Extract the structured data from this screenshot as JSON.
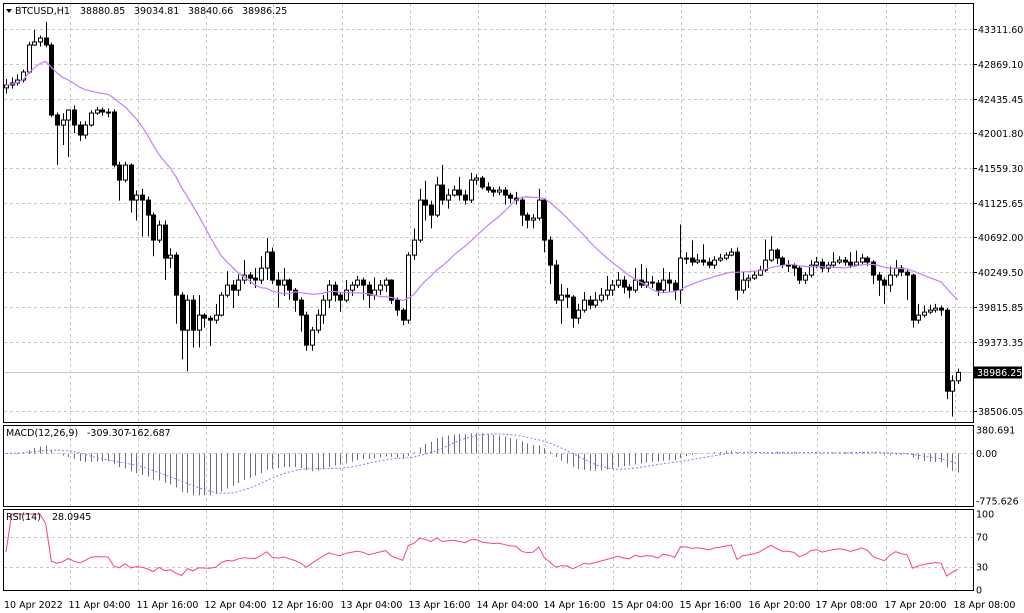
{
  "header": {
    "symbol": "BTCUSD,H1",
    "open": "38880.85",
    "high": "39034.81",
    "low": "38840.66",
    "close": "38986.25"
  },
  "colors": {
    "background": "#ffffff",
    "grid": "#c8c8c8",
    "candle": "#000000",
    "ma": "#c77dff",
    "macd_hist": "#6e6e82",
    "macd_signal": "#9a6cff",
    "rsi": "#ff3c96"
  },
  "icons": {
    "symbol_menu": "triangle-down-icon"
  },
  "chart_data": [
    {
      "type": "candlestick",
      "title": "BTCUSD,H1",
      "price_ticks": [
        "43311.60",
        "42869.10",
        "42435.45",
        "42001.80",
        "41559.30",
        "41125.65",
        "40692.00",
        "40249.50",
        "39815.85",
        "39373.35",
        "38506.05"
      ],
      "current_price_label": "38986.25",
      "ylim": [
        38380,
        43640
      ],
      "time_labels": [
        "10 Apr 2022",
        "11 Apr 04:00",
        "11 Apr 16:00",
        "12 Apr 04:00",
        "12 Apr 16:00",
        "13 Apr 04:00",
        "13 Apr 16:00",
        "14 Apr 04:00",
        "14 Apr 16:00",
        "15 Apr 04:00",
        "15 Apr 16:00",
        "16 Apr 20:00",
        "17 Apr 08:00",
        "17 Apr 20:00",
        "18 Apr 08:00"
      ],
      "grid": true,
      "first_open": 42570,
      "close": [
        42606,
        42632,
        42669,
        42770,
        43110,
        43148,
        43198,
        43110,
        42228,
        42102,
        42165,
        42291,
        42102,
        41976,
        42102,
        42253,
        42291,
        42266,
        42266,
        41598,
        41409,
        41598,
        41157,
        41220,
        41157,
        40968,
        40653,
        40842,
        40426,
        40464,
        39960,
        39519,
        39897,
        39519,
        39708,
        39670,
        39645,
        39708,
        39960,
        40086,
        40023,
        40149,
        40212,
        40174,
        40149,
        40300,
        40502,
        40149,
        40086,
        40149,
        40023,
        39897,
        39708,
        39330,
        39519,
        39708,
        39897,
        40086,
        39960,
        39897,
        40023,
        40086,
        40149,
        40086,
        39960,
        40023,
        40086,
        40149,
        39897,
        39771,
        39645,
        40464,
        40653,
        41157,
        41094,
        40968,
        41346,
        41157,
        41220,
        41283,
        41220,
        41157,
        41409,
        41434,
        41321,
        41283,
        41258,
        41283,
        41220,
        41182,
        41157,
        40968,
        40905,
        40930,
        41157,
        40653,
        40338,
        39897,
        39960,
        39935,
        39670,
        39771,
        39897,
        39834,
        39897,
        39960,
        40023,
        40086,
        40149,
        40061,
        40023,
        40149,
        40086,
        40124,
        40111,
        40023,
        40149,
        40111,
        40023,
        40426,
        40426,
        40376,
        40401,
        40376,
        40338,
        40401,
        40426,
        40464,
        40502,
        40023,
        40149,
        40174,
        40212,
        40275,
        40401,
        40527,
        40426,
        40338,
        40338,
        40300,
        40149,
        40212,
        40338,
        40376,
        40300,
        40338,
        40376,
        40401,
        40376,
        40338,
        40376,
        40426,
        40376,
        40212,
        40149,
        40086,
        40212,
        40300,
        40250,
        40212,
        39645,
        39708,
        39746,
        39771,
        39796,
        39771,
        38750,
        38880.85,
        38986.25
      ],
      "high": [
        42680,
        42700,
        42740,
        42800,
        43150,
        43300,
        43230,
        43400,
        43140,
        42260,
        42250,
        42300,
        42350,
        42150,
        42150,
        42290,
        42330,
        42320,
        42310,
        42300,
        41640,
        41640,
        41620,
        41280,
        41300,
        41200,
        41000,
        40900,
        40900,
        40550,
        40500,
        40000,
        39960,
        39960,
        39960,
        39730,
        39700,
        39850,
        40000,
        40260,
        40150,
        40220,
        40400,
        40250,
        40300,
        40450,
        40680,
        40560,
        40250,
        40300,
        40170,
        40050,
        39930,
        39750,
        39560,
        39780,
        39960,
        40150,
        40130,
        40000,
        40150,
        40130,
        40200,
        40180,
        40130,
        40180,
        40150,
        40180,
        40160,
        39930,
        39800,
        40500,
        40800,
        41300,
        41400,
        41150,
        41450,
        41600,
        41300,
        41340,
        41450,
        41280,
        41500,
        41480,
        41460,
        41380,
        41320,
        41330,
        41320,
        41250,
        41260,
        41200,
        41000,
        40980,
        41300,
        41170,
        40700,
        40400,
        40100,
        40050,
        39960,
        39850,
        40000,
        39950,
        40000,
        40050,
        40200,
        40150,
        40250,
        40200,
        40100,
        40300,
        40350,
        40300,
        40200,
        40150,
        40300,
        40250,
        40150,
        40850,
        40500,
        40650,
        40480,
        40600,
        40430,
        40450,
        40480,
        40500,
        40550,
        40560,
        40250,
        40220,
        40260,
        40330,
        40660,
        40700,
        40550,
        40450,
        40400,
        40360,
        40330,
        40250,
        40400,
        40440,
        40420,
        40380,
        40500,
        40450,
        40440,
        40500,
        40520,
        40480,
        40450,
        40400,
        40250,
        40180,
        40320,
        40400,
        40340,
        40280,
        40230,
        39850,
        39830,
        39840,
        39850,
        39830,
        39800,
        38950,
        39034.81
      ],
      "low": [
        42500,
        42560,
        42600,
        42640,
        42750,
        43100,
        43090,
        43080,
        42200,
        41600,
        41850,
        41700,
        42000,
        41900,
        41930,
        42080,
        42230,
        42220,
        42200,
        41570,
        41150,
        41380,
        41000,
        40900,
        40700,
        40700,
        40450,
        40620,
        40150,
        40300,
        39600,
        39150,
        39000,
        39300,
        39300,
        39550,
        39320,
        39600,
        39690,
        39930,
        39800,
        39950,
        40100,
        40100,
        40050,
        40100,
        40150,
        40100,
        39800,
        39950,
        39900,
        39750,
        39500,
        39260,
        39260,
        39480,
        39600,
        39800,
        39880,
        39750,
        39870,
        39950,
        40050,
        39900,
        39800,
        39900,
        39960,
        40000,
        39850,
        39700,
        39580,
        39600,
        40400,
        40620,
        40900,
        40800,
        40940,
        41100,
        41050,
        41200,
        41150,
        41100,
        41120,
        41350,
        41290,
        41250,
        41200,
        41220,
        41100,
        41120,
        41100,
        40830,
        40800,
        40800,
        40900,
        40500,
        40100,
        39850,
        39600,
        39800,
        39550,
        39600,
        39740,
        39780,
        39800,
        39870,
        39900,
        39950,
        40050,
        39980,
        39920,
        39990,
        40050,
        40050,
        40050,
        39950,
        39990,
        40000,
        39900,
        39850,
        40350,
        40330,
        40350,
        40330,
        40300,
        40290,
        40380,
        40400,
        40450,
        39900,
        39980,
        40050,
        40150,
        40200,
        40250,
        40380,
        40350,
        40300,
        40250,
        40200,
        40100,
        40100,
        40180,
        40300,
        40250,
        40250,
        40300,
        40350,
        40330,
        40300,
        40320,
        40350,
        40330,
        40100,
        39950,
        39850,
        40000,
        40180,
        40200,
        39900,
        39550,
        39600,
        39680,
        39720,
        39740,
        39700,
        38650,
        38430,
        38840.66
      ]
    },
    {
      "type": "bar",
      "title": "MACD(12,26,9) -309.307 -162.687",
      "label": "MACD(12,26,9)",
      "main_value": "-309.307",
      "signal_value": "-162.687",
      "ticks": [
        "380.691",
        "0.00",
        "-775.626"
      ],
      "ylim": [
        -775.626,
        380.691
      ]
    },
    {
      "type": "line",
      "title": "RSI(14) 28.0945",
      "label": "RSI(14)",
      "value": "28.0945",
      "ticks": [
        "100",
        "70",
        "30",
        "0"
      ],
      "ylim": [
        0,
        100
      ],
      "levels": [
        30,
        70
      ]
    }
  ]
}
